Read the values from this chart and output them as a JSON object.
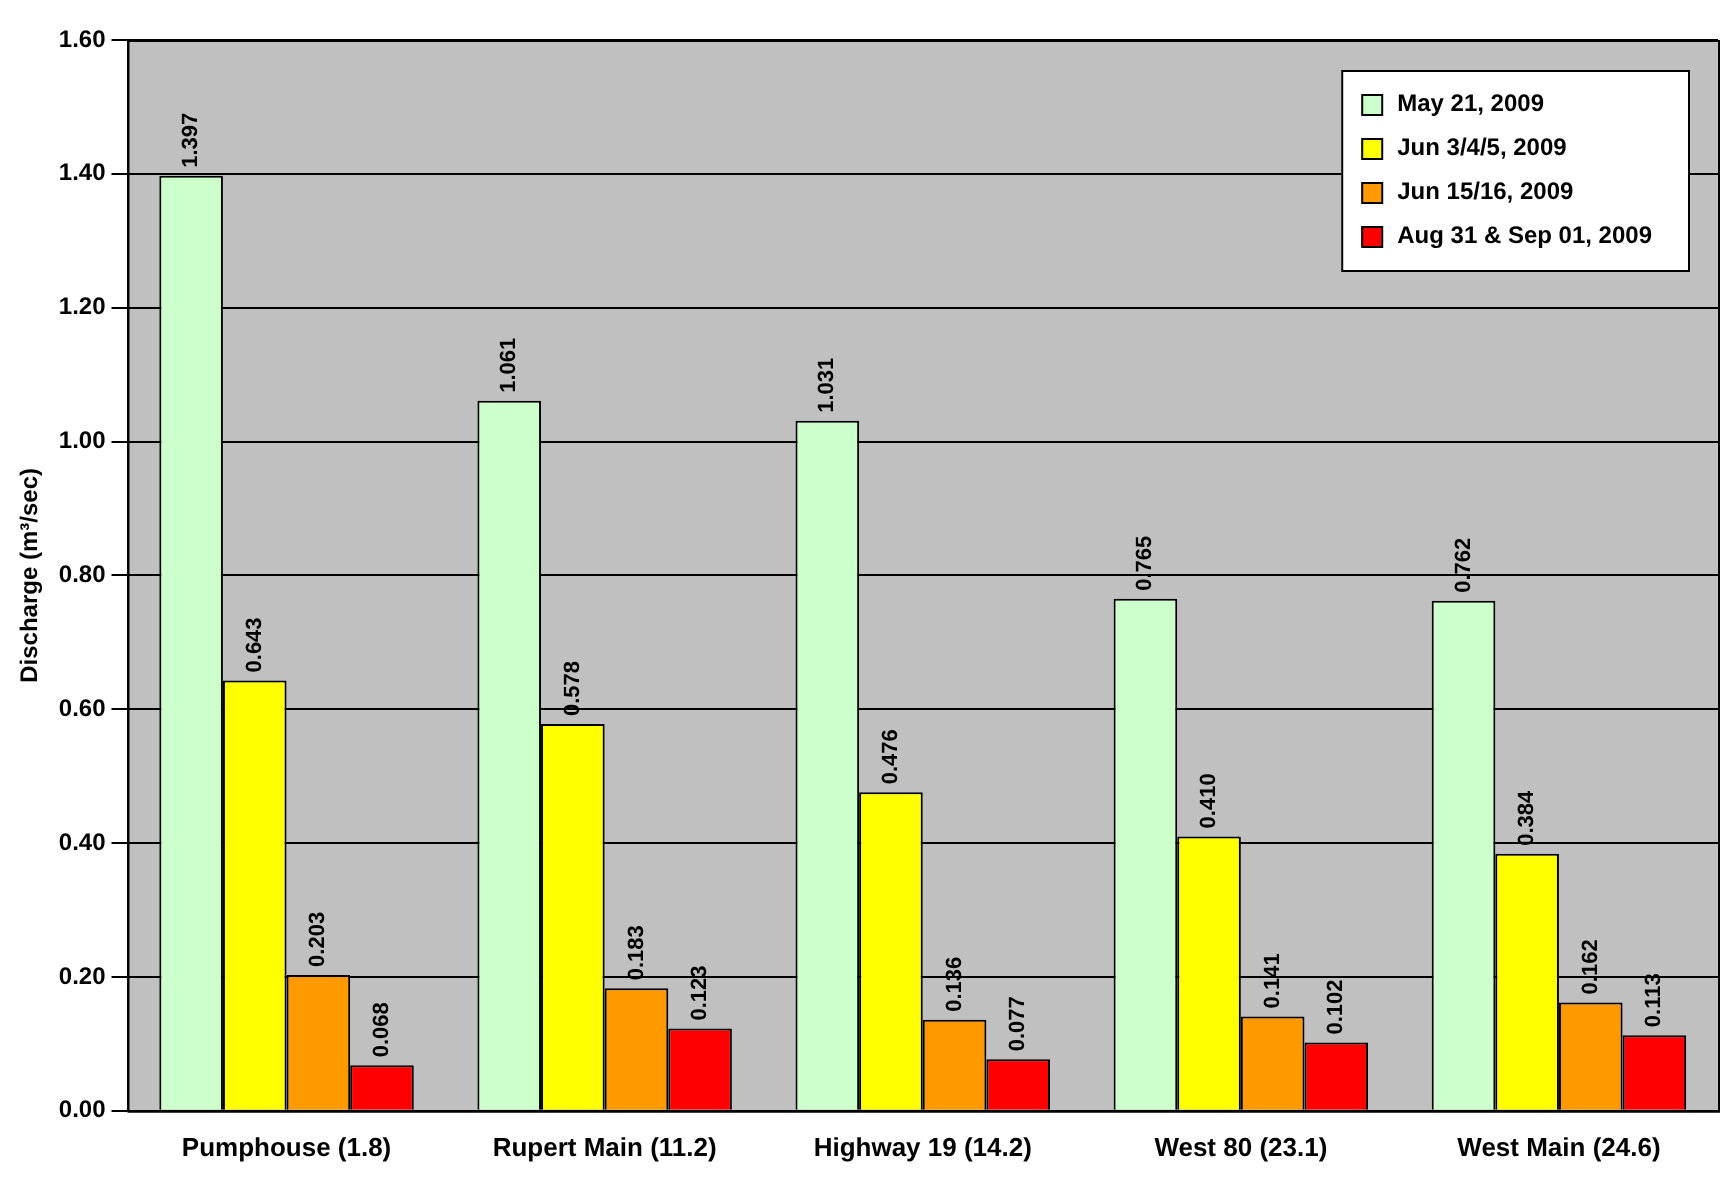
{
  "chart_data": {
    "type": "bar",
    "ylabel": "Discharge (m³/sec)",
    "categories": [
      "Pumphouse (1.8)",
      "Rupert Main (11.2)",
      "Highway 19 (14.2)",
      "West 80 (23.1)",
      "West Main (24.6)"
    ],
    "series": [
      {
        "name": "May 21, 2009",
        "color": "#ccffcc",
        "values": [
          1.397,
          1.061,
          1.031,
          0.765,
          0.762
        ],
        "value_labels": [
          "1.397",
          "1.061",
          "1.031",
          "0.765",
          "0.762"
        ]
      },
      {
        "name": "Jun 3/4/5, 2009",
        "color": "#ffff00",
        "values": [
          0.643,
          0.578,
          0.476,
          0.41,
          0.384
        ],
        "value_labels": [
          "0.643",
          "0.578",
          "0.476",
          "0.410",
          "0.384"
        ]
      },
      {
        "name": "Jun 15/16, 2009",
        "color": "#ff9900",
        "values": [
          0.203,
          0.183,
          0.136,
          0.141,
          0.162
        ],
        "value_labels": [
          "0.203",
          "0.183",
          "0.136",
          "0.141",
          "0.162"
        ]
      },
      {
        "name": "Aug 31 & Sep 01, 2009",
        "color": "#ff0000",
        "values": [
          0.068,
          0.123,
          0.077,
          0.102,
          0.113
        ],
        "value_labels": [
          "0.068",
          "0.123",
          "0.077",
          "0.102",
          "0.113"
        ]
      }
    ],
    "ylim": [
      0,
      1.6
    ],
    "yticks": [
      {
        "value": 0,
        "label": "0.00"
      },
      {
        "value": 0.2,
        "label": "0.20"
      },
      {
        "value": 0.4,
        "label": "0.40"
      },
      {
        "value": 0.6,
        "label": "0.60"
      },
      {
        "value": 0.8,
        "label": "0.80"
      },
      {
        "value": 1.0,
        "label": "1.00"
      },
      {
        "value": 1.2,
        "label": "1.20"
      },
      {
        "value": 1.4,
        "label": "1.40"
      },
      {
        "value": 1.6,
        "label": "1.60"
      }
    ],
    "grid": "y",
    "legend": "top right"
  }
}
